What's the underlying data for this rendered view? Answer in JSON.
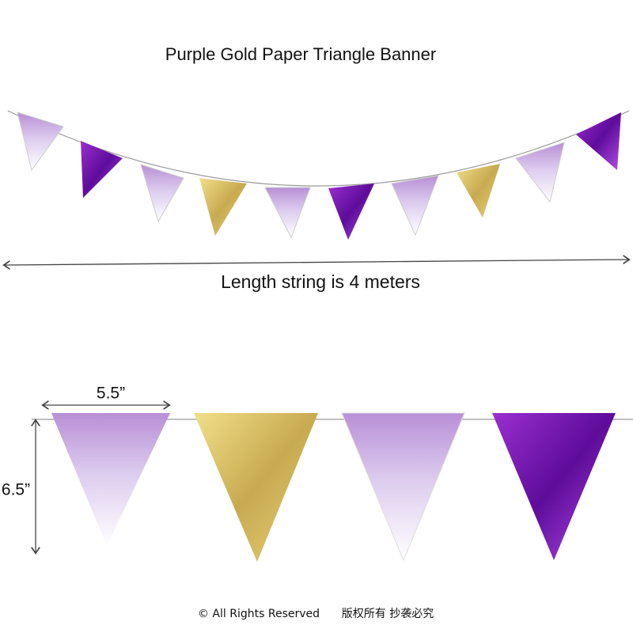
{
  "title": "Purple Gold Paper Triangle Banner",
  "length_label": "Length string is 4 meters",
  "width_label": "5.5”",
  "height_label": "6.5”",
  "footer": {
    "rights": "© All Rights Reserved",
    "chinese": "版权所有 抄袭必究"
  }
}
